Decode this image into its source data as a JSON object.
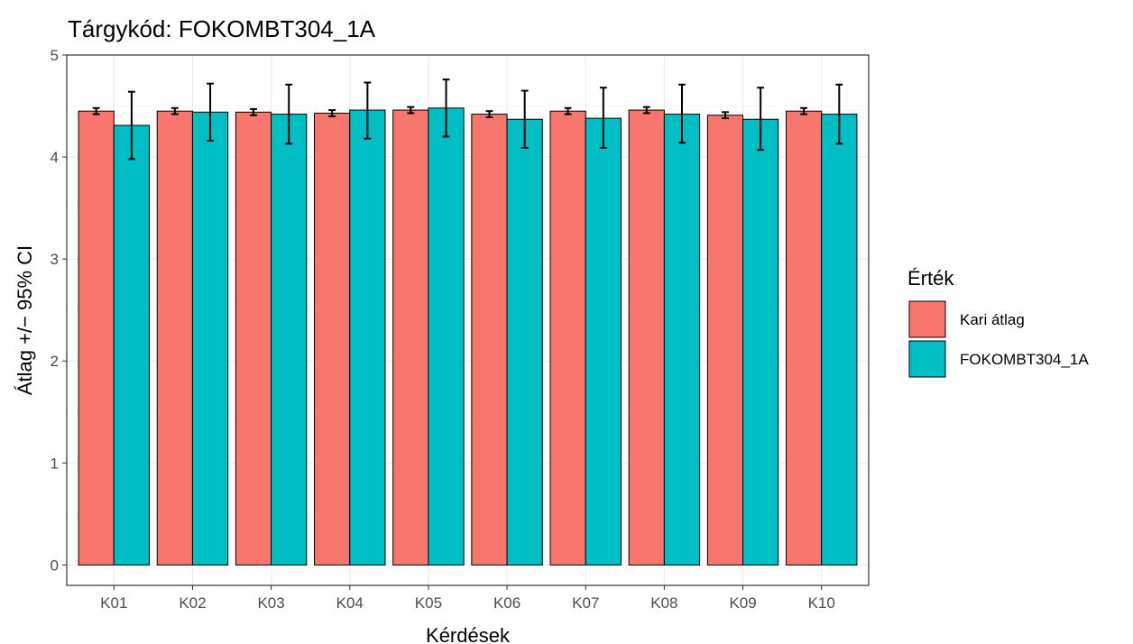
{
  "chart_data": {
    "type": "bar",
    "title": "Tárgykód:  FOKOMBT304_1A",
    "xlabel": "Kérdések",
    "ylabel": "Átlag +/− 95% CI",
    "categories": [
      "K01",
      "K02",
      "K03",
      "K04",
      "K05",
      "K06",
      "K07",
      "K08",
      "K09",
      "K10"
    ],
    "ylim": [
      -0.2,
      5.0
    ],
    "yticks": [
      "0",
      "1",
      "2",
      "3",
      "4",
      "5"
    ],
    "grid": true,
    "legend": {
      "title": "Érték",
      "placement": "right"
    },
    "series": [
      {
        "name": "Kari átlag",
        "color": "#F8766D",
        "values": [
          4.45,
          4.45,
          4.44,
          4.43,
          4.46,
          4.42,
          4.45,
          4.46,
          4.41,
          4.45
        ],
        "ci_low": [
          4.42,
          4.42,
          4.41,
          4.4,
          4.43,
          4.39,
          4.42,
          4.43,
          4.38,
          4.42
        ],
        "ci_high": [
          4.48,
          4.48,
          4.47,
          4.46,
          4.49,
          4.45,
          4.48,
          4.49,
          4.44,
          4.48
        ]
      },
      {
        "name": "FOKOMBT304_1A",
        "color": "#00BFC4",
        "values": [
          4.31,
          4.44,
          4.42,
          4.46,
          4.48,
          4.37,
          4.38,
          4.42,
          4.37,
          4.42
        ],
        "ci_low": [
          3.98,
          4.16,
          4.13,
          4.18,
          4.2,
          4.09,
          4.09,
          4.14,
          4.07,
          4.13
        ],
        "ci_high": [
          4.64,
          4.72,
          4.71,
          4.73,
          4.76,
          4.65,
          4.68,
          4.71,
          4.68,
          4.71
        ]
      }
    ]
  }
}
